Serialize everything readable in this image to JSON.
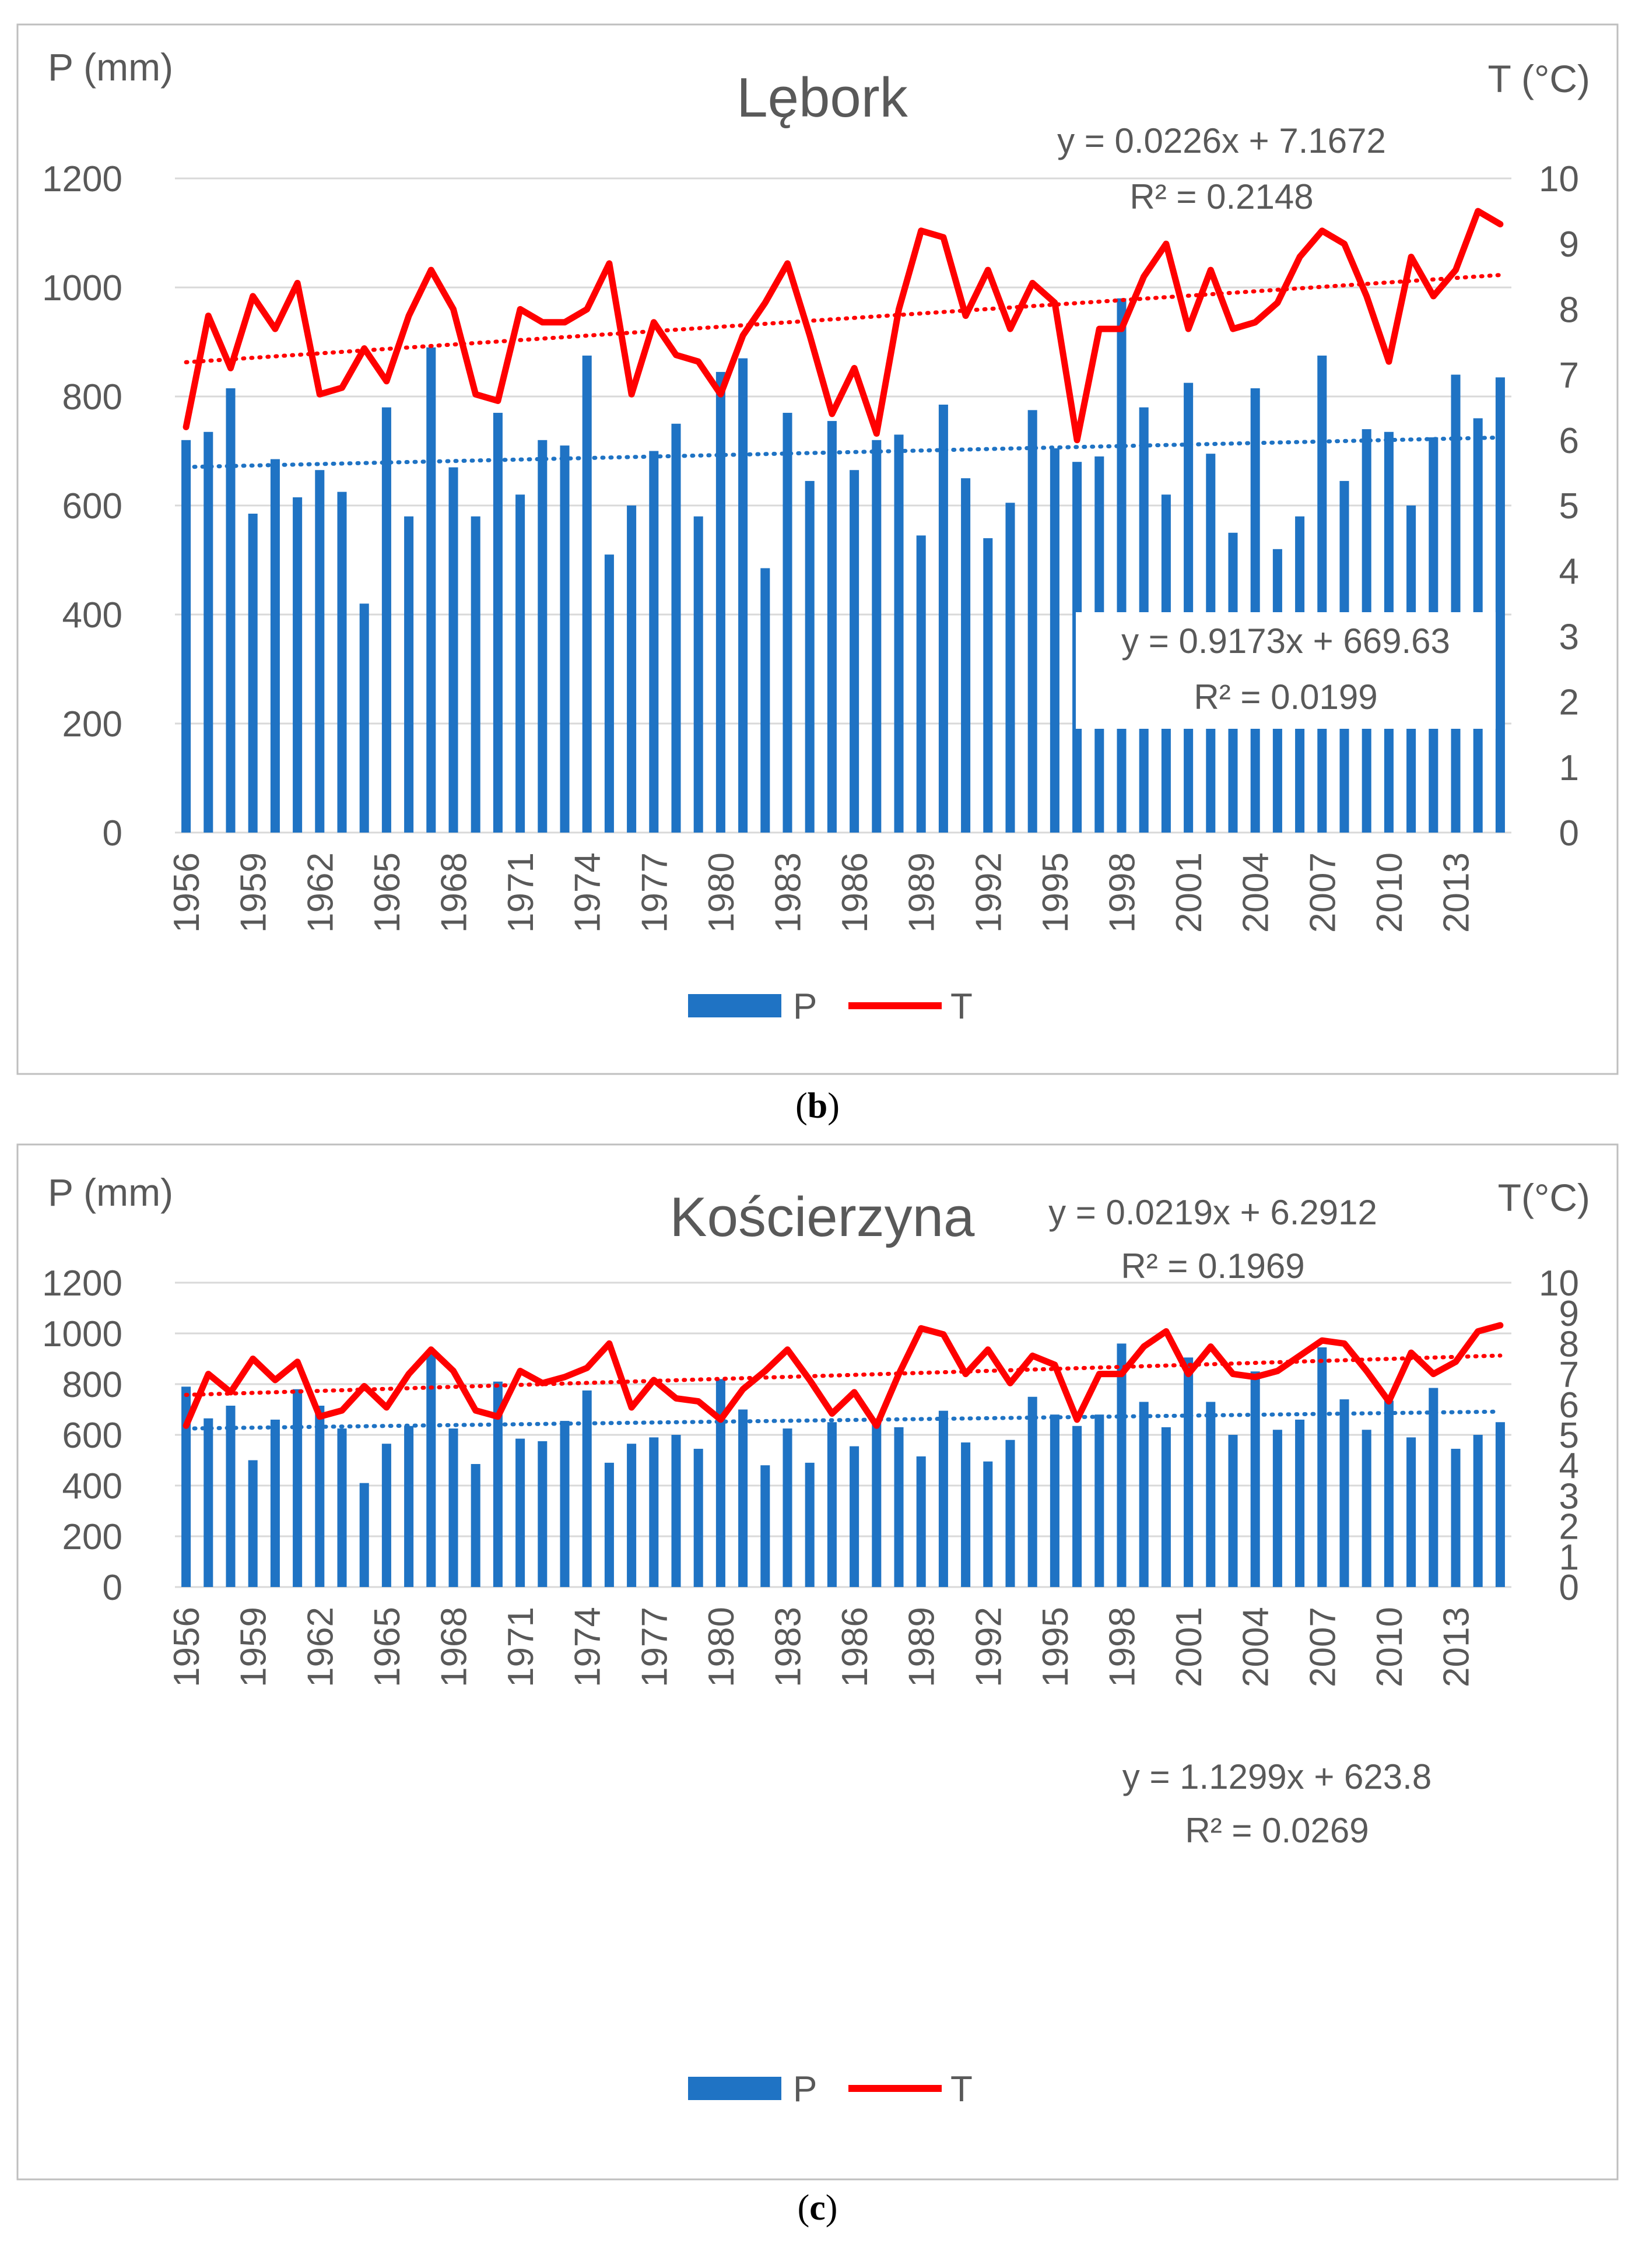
{
  "colors": {
    "P": "#1f73c4",
    "T": "#ff0000",
    "trendP": "#1f73c4",
    "trendT": "#ff0000",
    "text": "#595959",
    "grid": "#d9d9d9",
    "frame": "#bfbfbf"
  },
  "chart_data": [
    {
      "type": "bar",
      "title": "Lębork",
      "caption": {
        "open": "(",
        "letter": "b",
        "close": ")"
      },
      "ylabel_left": "P (mm)",
      "ylabel_right": "T (°C)",
      "ylim_left": [
        0,
        1200
      ],
      "ylim_right": [
        0,
        10
      ],
      "yticks_left": [
        "0",
        "200",
        "400",
        "600",
        "800",
        "1000",
        "1200"
      ],
      "yticks_right": [
        "0",
        "1",
        "2",
        "3",
        "4",
        "5",
        "6",
        "7",
        "8",
        "9",
        "10"
      ],
      "x": [
        1956,
        1957,
        1958,
        1959,
        1960,
        1961,
        1962,
        1963,
        1964,
        1965,
        1966,
        1967,
        1968,
        1969,
        1970,
        1971,
        1972,
        1973,
        1974,
        1975,
        1976,
        1977,
        1978,
        1979,
        1980,
        1981,
        1982,
        1983,
        1984,
        1985,
        1986,
        1987,
        1988,
        1989,
        1990,
        1991,
        1992,
        1993,
        1994,
        1995,
        1996,
        1997,
        1998,
        1999,
        2000,
        2001,
        2002,
        2003,
        2004,
        2005,
        2006,
        2007,
        2008,
        2009,
        2010,
        2011,
        2012,
        2013,
        2014,
        2015
      ],
      "xticks": [
        "1956",
        "1959",
        "1962",
        "1965",
        "1968",
        "1971",
        "1974",
        "1977",
        "1980",
        "1983",
        "1986",
        "1989",
        "1992",
        "1995",
        "1998",
        "2001",
        "2004",
        "2007",
        "2010",
        "2013"
      ],
      "series": [
        {
          "name": "P",
          "type": "bar",
          "axis": "left",
          "values": [
            720,
            735,
            815,
            585,
            685,
            615,
            665,
            625,
            420,
            780,
            580,
            890,
            670,
            580,
            770,
            620,
            720,
            710,
            875,
            510,
            600,
            700,
            750,
            580,
            845,
            870,
            485,
            770,
            645,
            755,
            665,
            720,
            730,
            545,
            785,
            650,
            540,
            605,
            775,
            705,
            680,
            690,
            980,
            780,
            620,
            825,
            695,
            550,
            815,
            520,
            580,
            875,
            645,
            740,
            735,
            600,
            725,
            840,
            760,
            835
          ]
        },
        {
          "name": "T",
          "type": "line",
          "axis": "right",
          "values": [
            6.2,
            7.9,
            7.1,
            8.2,
            7.7,
            8.4,
            6.7,
            6.8,
            7.4,
            6.9,
            7.9,
            8.6,
            8.0,
            6.7,
            6.6,
            8.0,
            7.8,
            7.8,
            8.0,
            8.7,
            6.7,
            7.8,
            7.3,
            7.2,
            6.7,
            7.6,
            8.1,
            8.7,
            7.6,
            6.4,
            7.1,
            6.1,
            8.0,
            9.2,
            9.1,
            7.9,
            8.6,
            7.7,
            8.4,
            8.1,
            6.0,
            7.7,
            7.7,
            8.5,
            9.0,
            7.7,
            8.6,
            7.7,
            7.8,
            8.1,
            8.8,
            9.2,
            9.0,
            8.2,
            7.2,
            8.8,
            8.2,
            8.6,
            9.5,
            9.3
          ]
        }
      ],
      "trendlines": [
        {
          "series": "T",
          "slope": 0.0226,
          "intercept": 7.1672,
          "equation": "y = 0.0226x + 7.1672",
          "r2_label": "R² = 0.2148"
        },
        {
          "series": "P",
          "slope": 0.9173,
          "intercept": 669.63,
          "equation": "y = 0.9173x + 669.63",
          "r2_label": "R² = 0.0199"
        }
      ],
      "legend": {
        "position": "bottom",
        "items": [
          "P",
          "T"
        ]
      }
    },
    {
      "type": "bar",
      "title": "Kościerzyna",
      "caption": {
        "open": "(",
        "letter": "c",
        "close": ")"
      },
      "ylabel_left": "P (mm)",
      "ylabel_right": "T(°C)",
      "ylim_left": [
        0,
        1200
      ],
      "ylim_right": [
        0,
        10
      ],
      "yticks_left": [
        "0",
        "200",
        "400",
        "600",
        "800",
        "1000",
        "1200"
      ],
      "yticks_right": [
        "0",
        "1",
        "2",
        "3",
        "4",
        "5",
        "6",
        "7",
        "8",
        "9",
        "10"
      ],
      "x": [
        1956,
        1957,
        1958,
        1959,
        1960,
        1961,
        1962,
        1963,
        1964,
        1965,
        1966,
        1967,
        1968,
        1969,
        1970,
        1971,
        1972,
        1973,
        1974,
        1975,
        1976,
        1977,
        1978,
        1979,
        1980,
        1981,
        1982,
        1983,
        1984,
        1985,
        1986,
        1987,
        1988,
        1989,
        1990,
        1991,
        1992,
        1993,
        1994,
        1995,
        1996,
        1997,
        1998,
        1999,
        2000,
        2001,
        2002,
        2003,
        2004,
        2005,
        2006,
        2007,
        2008,
        2009,
        2010,
        2011,
        2012,
        2013,
        2014,
        2015
      ],
      "xticks": [
        "1956",
        "1959",
        "1962",
        "1965",
        "1968",
        "1971",
        "1974",
        "1977",
        "1980",
        "1983",
        "1986",
        "1989",
        "1992",
        "1995",
        "1998",
        "2001",
        "2004",
        "2007",
        "2010",
        "2013"
      ],
      "series": [
        {
          "name": "P",
          "type": "bar",
          "axis": "left",
          "values": [
            790,
            665,
            715,
            500,
            660,
            780,
            715,
            625,
            410,
            565,
            635,
            930,
            625,
            485,
            810,
            585,
            575,
            655,
            775,
            490,
            565,
            590,
            600,
            545,
            820,
            700,
            480,
            625,
            490,
            650,
            555,
            665,
            630,
            515,
            695,
            570,
            495,
            580,
            750,
            680,
            635,
            680,
            960,
            730,
            630,
            905,
            730,
            600,
            850,
            620,
            660,
            945,
            740,
            620,
            735,
            590,
            785,
            545,
            600,
            650
          ]
        },
        {
          "name": "T",
          "type": "line",
          "axis": "right",
          "values": [
            5.3,
            7.0,
            6.4,
            7.5,
            6.8,
            7.4,
            5.6,
            5.8,
            6.6,
            5.9,
            7.0,
            7.8,
            7.1,
            5.8,
            5.6,
            7.1,
            6.7,
            6.9,
            7.2,
            8.0,
            5.9,
            6.8,
            6.2,
            6.1,
            5.5,
            6.5,
            7.1,
            7.8,
            6.8,
            5.7,
            6.4,
            5.3,
            7.0,
            8.5,
            8.3,
            7.0,
            7.8,
            6.7,
            7.6,
            7.3,
            5.5,
            7.0,
            7.0,
            7.9,
            8.4,
            7.0,
            7.9,
            7.0,
            6.9,
            7.1,
            7.6,
            8.1,
            8.0,
            7.1,
            6.1,
            7.7,
            7.0,
            7.4,
            8.4,
            8.6
          ]
        }
      ],
      "trendlines": [
        {
          "series": "T",
          "slope": 0.0219,
          "intercept": 6.2912,
          "equation": "y = 0.0219x + 6.2912",
          "r2_label": "R² = 0.1969"
        },
        {
          "series": "P",
          "slope": 1.1299,
          "intercept": 623.8,
          "equation": "y = 1.1299x + 623.8",
          "r2_label": "R² = 0.0269"
        }
      ],
      "legend": {
        "position": "bottom",
        "items": [
          "P",
          "T"
        ]
      }
    }
  ]
}
